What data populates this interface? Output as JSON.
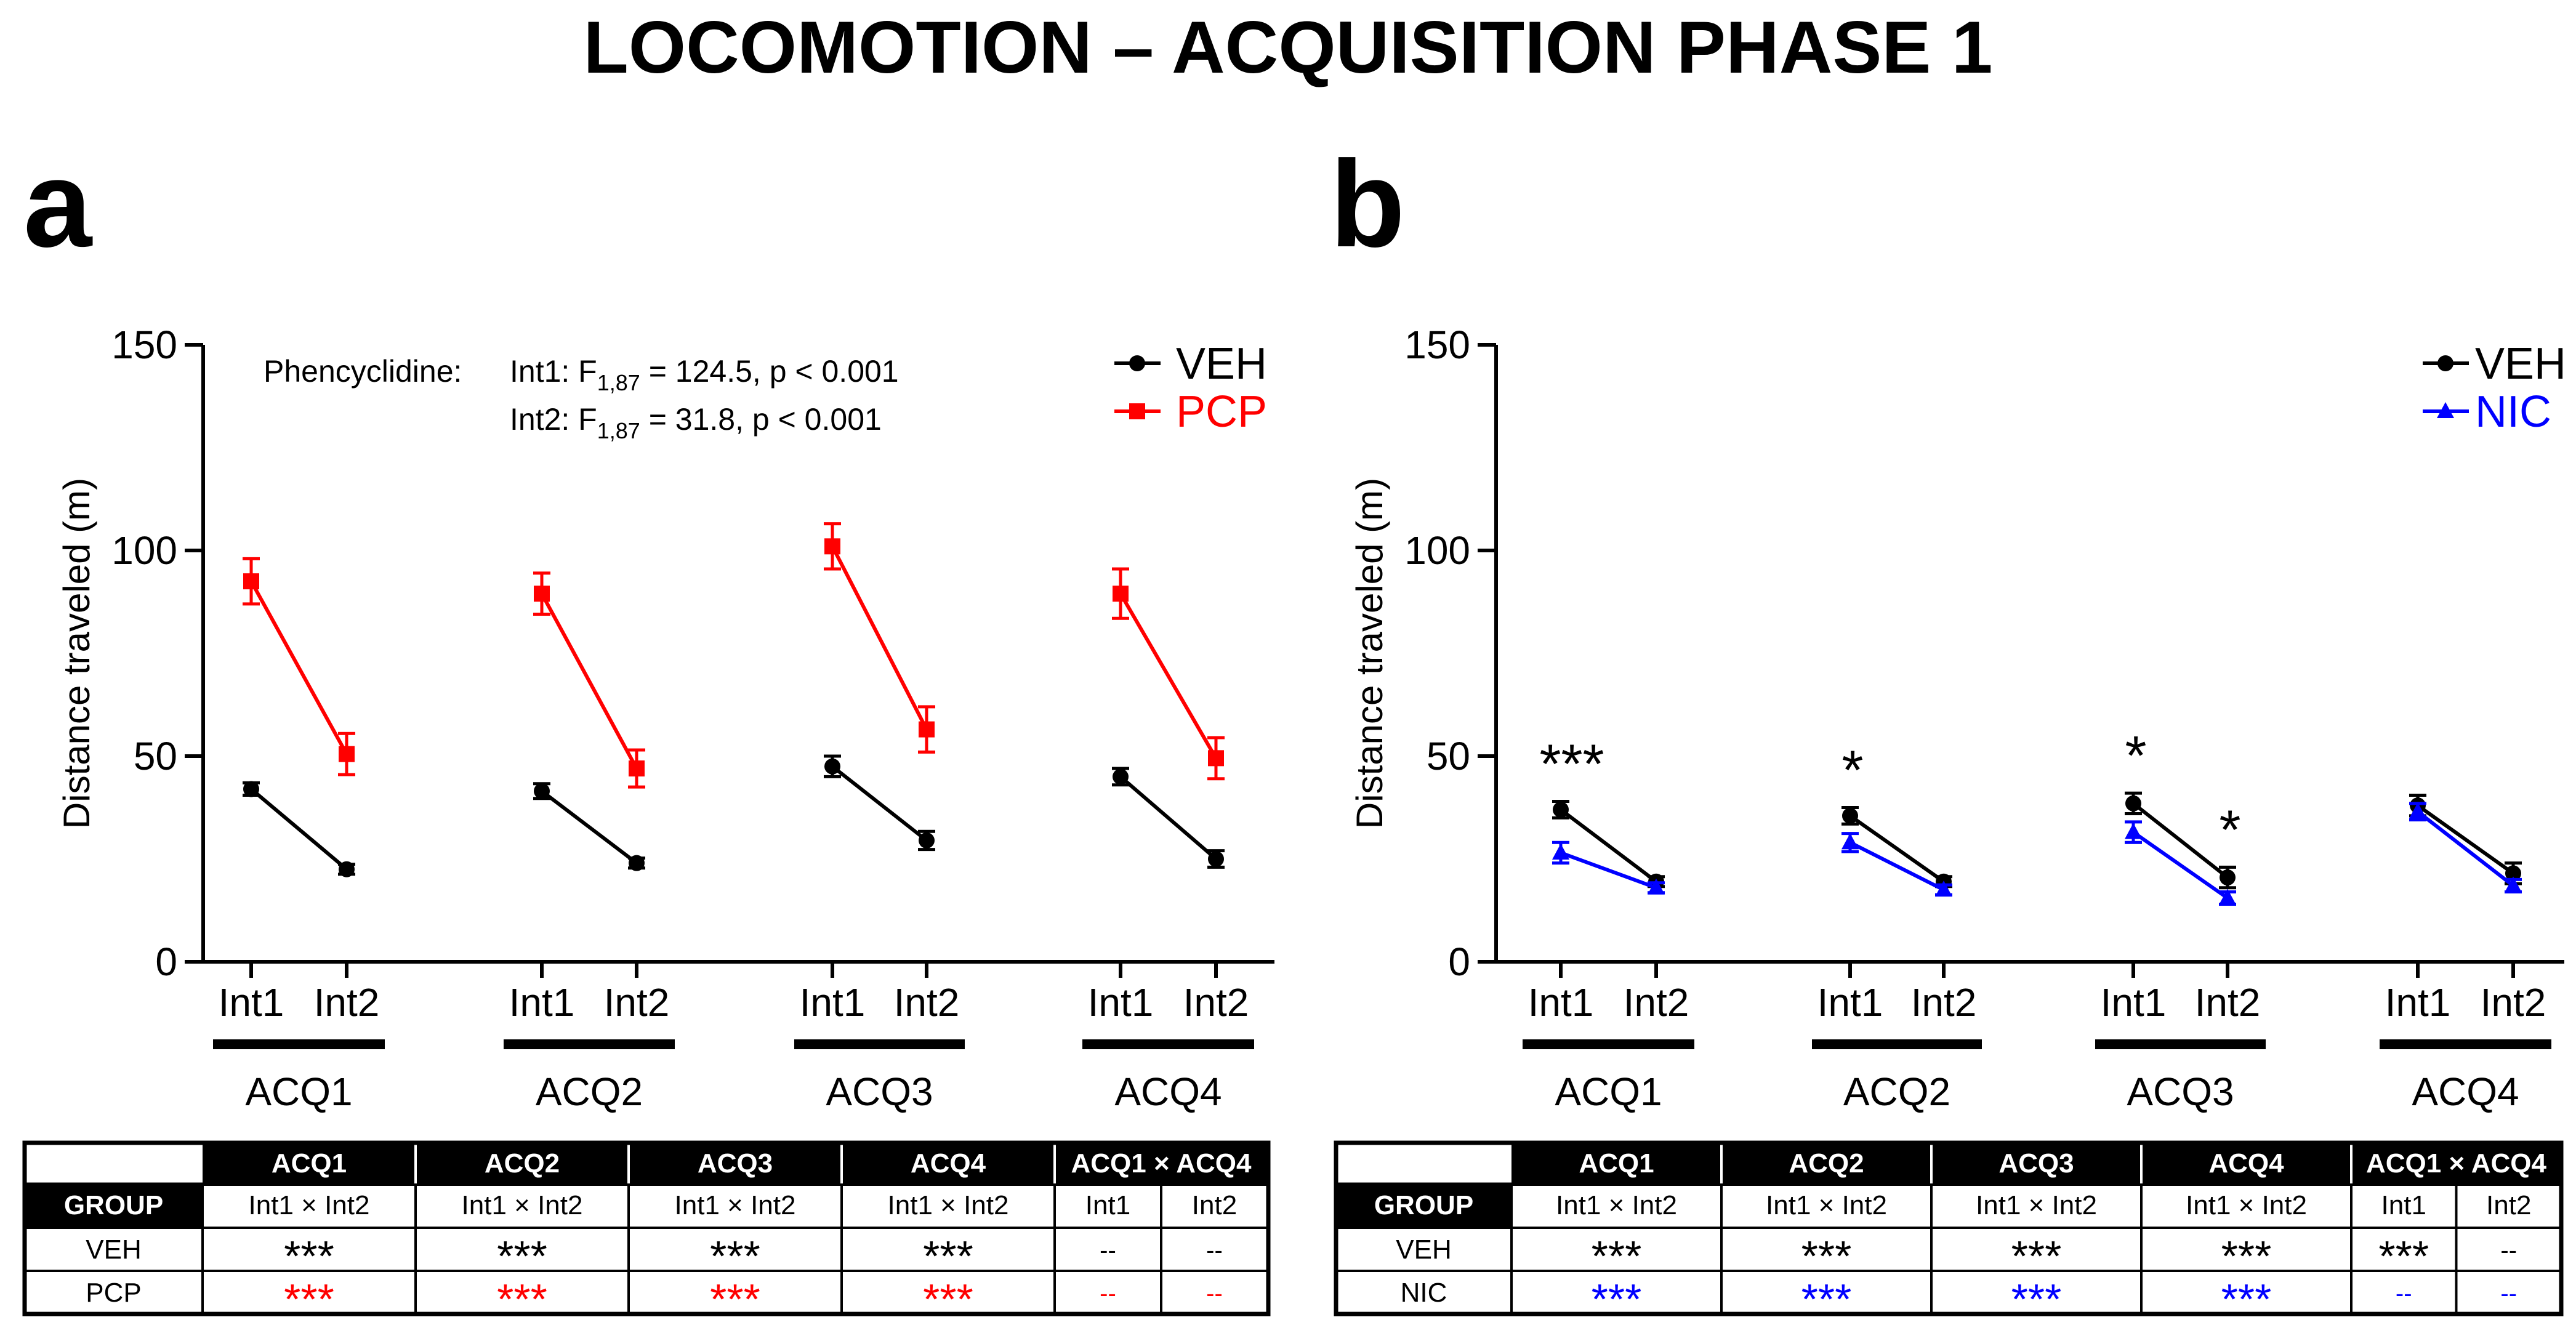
{
  "title": "LOCOMOTION – ACQUISITION PHASE 1",
  "colors": {
    "veh": "#000000",
    "pcp": "#ff0000",
    "nic": "#0000ff"
  },
  "chart_data": [
    {
      "panel": "a",
      "type": "line",
      "ylabel": "Distance traveled (m)",
      "ylim": [
        0,
        150
      ],
      "yticks": [
        "0",
        "50",
        "100",
        "150"
      ],
      "groups": [
        "ACQ1",
        "ACQ2",
        "ACQ3",
        "ACQ4"
      ],
      "points": [
        "Int1",
        "Int2"
      ],
      "legend_position": "top-right",
      "series": [
        {
          "name": "VEH",
          "color": "#000000",
          "marker": "circle",
          "values": [
            [
              42,
              22.5
            ],
            [
              41.5,
              24
            ],
            [
              47.5,
              29.5
            ],
            [
              45,
              25
            ]
          ],
          "errors": [
            [
              1.5,
              1.2
            ],
            [
              1.8,
              1.2
            ],
            [
              2.5,
              2.2
            ],
            [
              2,
              2
            ]
          ]
        },
        {
          "name": "PCP",
          "color": "#ff0000",
          "marker": "square",
          "values": [
            [
              92.5,
              50.5
            ],
            [
              89.5,
              47
            ],
            [
              101,
              56.5
            ],
            [
              89.5,
              49.5
            ]
          ],
          "errors": [
            [
              5.5,
              5
            ],
            [
              5,
              4.5
            ],
            [
              5.5,
              5.5
            ],
            [
              6,
              5
            ]
          ]
        }
      ],
      "stats": {
        "label": "Phencyclidine:",
        "lines": [
          {
            "pre": "Int1: F",
            "sub": "1,87",
            "post": " = 124.5, p < 0.001"
          },
          {
            "pre": "Int2: F",
            "sub": "1,87",
            "post": " = 31.8, p < 0.001"
          }
        ]
      },
      "table": {
        "headers": [
          "ACQ1",
          "ACQ2",
          "ACQ3",
          "ACQ4",
          "ACQ1 × ACQ4"
        ],
        "subheaders": [
          "Int1 × Int2",
          "Int1 × Int2",
          "Int1 × Int2",
          "Int1 × Int2",
          "Int1",
          "Int2"
        ],
        "group_label": "GROUP",
        "rows": [
          {
            "group": "VEH",
            "color": "#000000",
            "cells": [
              "***",
              "***",
              "***",
              "***",
              "--",
              "--"
            ]
          },
          {
            "group": "PCP",
            "color": "#ff0000",
            "cells": [
              "***",
              "***",
              "***",
              "***",
              "--",
              "--"
            ]
          }
        ]
      }
    },
    {
      "panel": "b",
      "type": "line",
      "ylabel": "Distance traveled (m)",
      "ylim": [
        0,
        150
      ],
      "yticks": [
        "0",
        "50",
        "100",
        "150"
      ],
      "groups": [
        "ACQ1",
        "ACQ2",
        "ACQ3",
        "ACQ4"
      ],
      "points": [
        "Int1",
        "Int2"
      ],
      "legend_position": "top-right",
      "series": [
        {
          "name": "VEH",
          "color": "#000000",
          "marker": "circle",
          "values": [
            [
              37,
              19.5
            ],
            [
              35.5,
              19.5
            ],
            [
              38.5,
              20.5
            ],
            [
              38,
              21.5
            ]
          ],
          "errors": [
            [
              2,
              1.2
            ],
            [
              2,
              1.2
            ],
            [
              2.5,
              2.5
            ],
            [
              2.5,
              2.5
            ]
          ]
        },
        {
          "name": "NIC",
          "color": "#0000ff",
          "marker": "triangle",
          "values": [
            [
              26.5,
              18
            ],
            [
              29,
              17.5
            ],
            [
              31.5,
              15.5
            ],
            [
              36.5,
              18.5
            ]
          ],
          "errors": [
            [
              2.5,
              1.2
            ],
            [
              2.2,
              1.2
            ],
            [
              2.5,
              1.5
            ],
            [
              2,
              1.5
            ]
          ]
        }
      ],
      "significance": [
        {
          "group": 0,
          "point": 0,
          "text": "***"
        },
        {
          "group": 1,
          "point": 0,
          "text": "*"
        },
        {
          "group": 2,
          "point": 0,
          "text": "*"
        },
        {
          "group": 2,
          "point": 1,
          "text": "*"
        }
      ],
      "table": {
        "headers": [
          "ACQ1",
          "ACQ2",
          "ACQ3",
          "ACQ4",
          "ACQ1 × ACQ4"
        ],
        "subheaders": [
          "Int1 × Int2",
          "Int1 × Int2",
          "Int1 × Int2",
          "Int1 × Int2",
          "Int1",
          "Int2"
        ],
        "group_label": "GROUP",
        "rows": [
          {
            "group": "VEH",
            "color": "#000000",
            "cells": [
              "***",
              "***",
              "***",
              "***",
              "***",
              "--"
            ]
          },
          {
            "group": "NIC",
            "color": "#0000ff",
            "cells": [
              "***",
              "***",
              "***",
              "***",
              "--",
              "--"
            ]
          }
        ]
      }
    }
  ]
}
